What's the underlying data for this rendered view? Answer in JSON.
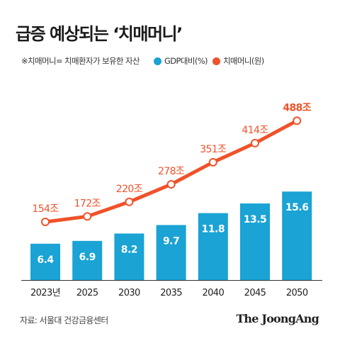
{
  "title": "급증 예상되는 ‘치매머니’",
  "legend": {
    "note": "※치매머니= 치매환자가 보유한 자산",
    "bar_label": "GDP대비(%)",
    "line_label": "치매머니(원)"
  },
  "colors": {
    "bar": "#1aa3d4",
    "line": "#f0522a",
    "bar_text": "#ffffff",
    "line_text": "#f0522a"
  },
  "chart_data": {
    "type": "bar",
    "categories": [
      "2023년",
      "2025",
      "2030",
      "2035",
      "2040",
      "2045",
      "2050"
    ],
    "series": [
      {
        "name": "GDP대비(%)",
        "type": "bar",
        "values": [
          6.4,
          6.9,
          8.2,
          9.7,
          11.8,
          13.5,
          15.6
        ],
        "labels": [
          "6.4",
          "6.9",
          "8.2",
          "9.7",
          "11.8",
          "13.5",
          "15.6"
        ]
      },
      {
        "name": "치매머니(원)",
        "type": "line",
        "values": [
          154,
          172,
          220,
          278,
          351,
          414,
          488
        ],
        "labels": [
          "154조",
          "172조",
          "220조",
          "278조",
          "351조",
          "414조",
          "488조"
        ]
      }
    ]
  },
  "source": "자료: 서울대 건강금융센터",
  "brand": "The JoongAng"
}
